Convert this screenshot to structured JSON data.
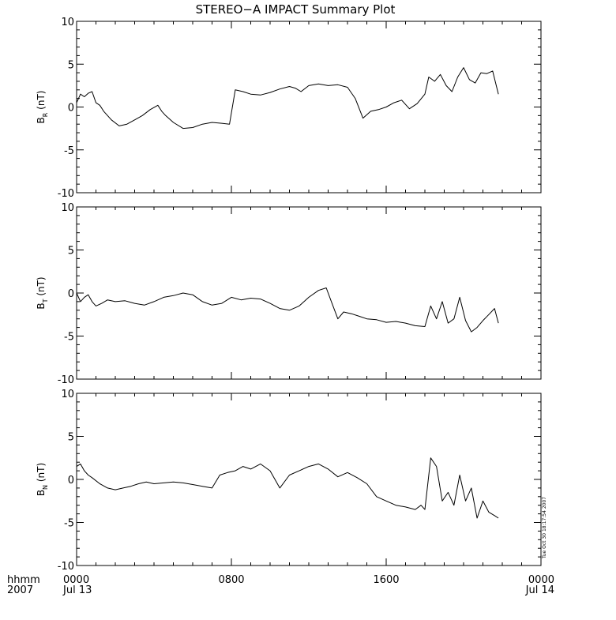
{
  "chart_data": {
    "type": "line",
    "title": "STEREO−A IMPACT Summary Plot",
    "timestamp_note": "Tue Oct 30 18:17:54 2007",
    "x_axis": {
      "unit_label": "hhmm",
      "year_label": "2007",
      "range_hours": [
        0,
        24
      ],
      "ticks": [
        {
          "hour": 0,
          "label": "0000",
          "date": "Jul 13"
        },
        {
          "hour": 8,
          "label": "0800",
          "date": ""
        },
        {
          "hour": 16,
          "label": "1600",
          "date": ""
        },
        {
          "hour": 24,
          "label": "0000",
          "date": "Jul 14"
        }
      ]
    },
    "panels": [
      {
        "id": "br",
        "ylabel_main": "B",
        "ylabel_sub": "R",
        "ylabel_unit": " (nT)",
        "ylim": [
          -10,
          10
        ],
        "yticks": [
          10,
          5,
          0,
          -5,
          -10
        ],
        "x": [
          0,
          0.2,
          0.4,
          0.6,
          0.8,
          1.0,
          1.2,
          1.4,
          1.8,
          2.2,
          2.6,
          3.0,
          3.4,
          3.8,
          4.2,
          4.4,
          4.6,
          5.0,
          5.5,
          6.0,
          6.5,
          7.0,
          7.5,
          7.9,
          8.2,
          8.6,
          9.0,
          9.5,
          10.0,
          10.5,
          11.0,
          11.3,
          11.6,
          12.0,
          12.5,
          13.0,
          13.5,
          14.0,
          14.4,
          14.8,
          15.2,
          15.6,
          16.0,
          16.4,
          16.8,
          17.2,
          17.6,
          18.0,
          18.2,
          18.5,
          18.8,
          19.1,
          19.4,
          19.7,
          20.0,
          20.3,
          20.6,
          20.9,
          21.2,
          21.5,
          21.8
        ],
        "y": [
          0.5,
          1.5,
          1.2,
          1.6,
          1.8,
          0.5,
          0.2,
          -0.5,
          -1.5,
          -2.2,
          -2.0,
          -1.5,
          -1.0,
          -0.3,
          0.2,
          -0.5,
          -1.0,
          -1.8,
          -2.5,
          -2.4,
          -2.0,
          -1.8,
          -1.9,
          -2.0,
          2.0,
          1.8,
          1.5,
          1.4,
          1.7,
          2.1,
          2.4,
          2.2,
          1.8,
          2.5,
          2.7,
          2.5,
          2.6,
          2.3,
          1.0,
          -1.3,
          -0.5,
          -0.3,
          0.0,
          0.5,
          0.8,
          -0.2,
          0.4,
          1.5,
          3.5,
          3.0,
          3.8,
          2.5,
          1.8,
          3.5,
          4.6,
          3.2,
          2.8,
          4.0,
          3.9,
          4.2,
          1.5
        ]
      },
      {
        "id": "bt",
        "ylabel_main": "B",
        "ylabel_sub": "T",
        "ylabel_unit": " (nT)",
        "ylim": [
          -10,
          10
        ],
        "yticks": [
          10,
          5,
          0,
          -5,
          -10
        ],
        "x": [
          0,
          0.2,
          0.4,
          0.6,
          0.8,
          1.0,
          1.3,
          1.6,
          2.0,
          2.5,
          3.0,
          3.5,
          4.0,
          4.5,
          5.0,
          5.5,
          6.0,
          6.5,
          7.0,
          7.5,
          8.0,
          8.5,
          9.0,
          9.5,
          10.0,
          10.5,
          11.0,
          11.5,
          12.0,
          12.5,
          12.9,
          13.2,
          13.5,
          13.8,
          14.2,
          14.6,
          15.0,
          15.5,
          16.0,
          16.5,
          17.0,
          17.5,
          18.0,
          18.3,
          18.6,
          18.9,
          19.2,
          19.5,
          19.8,
          20.1,
          20.4,
          20.7,
          21.0,
          21.3,
          21.6,
          21.8
        ],
        "y": [
          0.0,
          -1.0,
          -0.5,
          -0.2,
          -1.0,
          -1.5,
          -1.2,
          -0.8,
          -1.0,
          -0.9,
          -1.2,
          -1.4,
          -1.0,
          -0.5,
          -0.3,
          0.0,
          -0.2,
          -1.0,
          -1.4,
          -1.2,
          -0.5,
          -0.8,
          -0.6,
          -0.7,
          -1.2,
          -1.8,
          -2.0,
          -1.5,
          -0.5,
          0.3,
          0.6,
          -1.2,
          -3.0,
          -2.2,
          -2.4,
          -2.7,
          -3.0,
          -3.1,
          -3.4,
          -3.3,
          -3.5,
          -3.8,
          -3.9,
          -1.5,
          -3.0,
          -1.0,
          -3.5,
          -3.0,
          -0.5,
          -3.2,
          -4.5,
          -4.0,
          -3.2,
          -2.5,
          -1.8,
          -3.5
        ]
      },
      {
        "id": "bn",
        "ylabel_main": "B",
        "ylabel_sub": "N",
        "ylabel_unit": " (nT)",
        "ylim": [
          -10,
          10
        ],
        "yticks": [
          10,
          5,
          0,
          -5,
          -10
        ],
        "x": [
          0,
          0.2,
          0.4,
          0.6,
          0.8,
          1.2,
          1.6,
          2.0,
          2.4,
          2.8,
          3.2,
          3.6,
          4.0,
          4.5,
          5.0,
          5.5,
          6.0,
          6.5,
          7.0,
          7.4,
          7.8,
          8.2,
          8.6,
          9.0,
          9.5,
          10.0,
          10.5,
          11.0,
          11.5,
          12.0,
          12.5,
          13.0,
          13.5,
          14.0,
          14.5,
          15.0,
          15.5,
          16.0,
          16.5,
          17.0,
          17.5,
          17.8,
          18.0,
          18.3,
          18.6,
          18.9,
          19.2,
          19.5,
          19.8,
          20.1,
          20.4,
          20.7,
          21.0,
          21.3,
          21.6,
          21.8
        ],
        "y": [
          1.5,
          1.8,
          1.0,
          0.5,
          0.2,
          -0.5,
          -1.0,
          -1.2,
          -1.0,
          -0.8,
          -0.5,
          -0.3,
          -0.5,
          -0.4,
          -0.3,
          -0.4,
          -0.6,
          -0.8,
          -1.0,
          0.5,
          0.8,
          1.0,
          1.5,
          1.2,
          1.8,
          1.0,
          -1.0,
          0.5,
          1.0,
          1.5,
          1.8,
          1.2,
          0.3,
          0.8,
          0.2,
          -0.5,
          -2.0,
          -2.5,
          -3.0,
          -3.2,
          -3.5,
          -3.0,
          -3.5,
          2.5,
          1.5,
          -2.5,
          -1.5,
          -3.0,
          0.5,
          -2.5,
          -1.0,
          -4.5,
          -2.5,
          -3.8,
          -4.2,
          -4.5
        ]
      }
    ]
  }
}
